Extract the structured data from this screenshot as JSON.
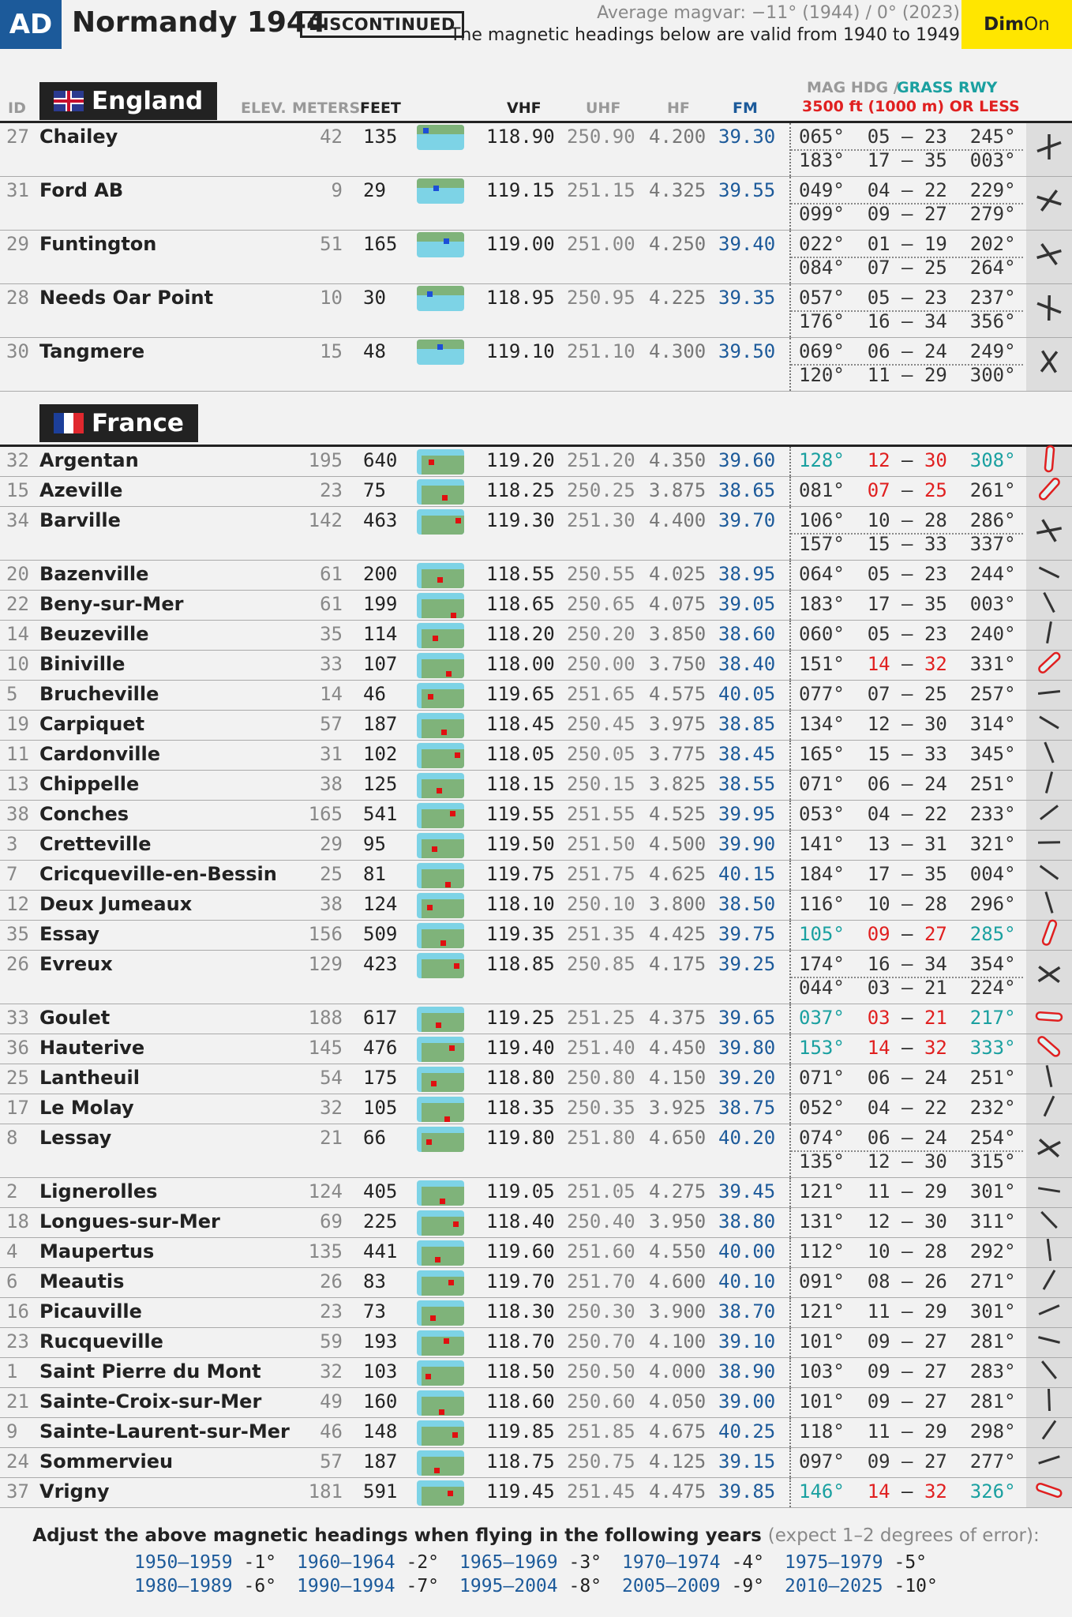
{
  "header": {
    "badge": "AD",
    "title": "Normandy 1944",
    "status": "DISCONTINUED",
    "magvar": "Average magvar: −11° (1944) / 0° (2023)",
    "validity": "The magnetic headings below are valid from 1940 to 1949",
    "dim_label": "Dim",
    "on_label": "On"
  },
  "columns": {
    "id": "ID",
    "elev": "ELEV.",
    "meters": "METERS",
    "feet": "FEET",
    "vhf": "VHF",
    "uhf": "UHF",
    "hf": "HF",
    "fm": "FM",
    "mag_hdg": "MAG HDG /",
    "grass_rwy": "GRASS RWY",
    "rwy_limit": "3500 ft (1000 m) OR LESS"
  },
  "sections": [
    {
      "name": "England",
      "flag": "uk-flag",
      "airfields": [
        {
          "id": "27",
          "name": "Chailey",
          "m": "42",
          "ft": "135",
          "vhf": "118.90",
          "uhf": "250.90",
          "hf": "4.200",
          "fm": "39.30",
          "rwys": [
            "065°  05 – 23  245°",
            "183°  17 – 35  003°"
          ],
          "grass": false,
          "icon": "runway-cross-icon"
        },
        {
          "id": "31",
          "name": "Ford AB",
          "m": "9",
          "ft": "29",
          "vhf": "119.15",
          "uhf": "251.15",
          "hf": "4.325",
          "fm": "39.55",
          "rwys": [
            "049°  04 – 22  229°",
            "099°  09 – 27  279°"
          ],
          "grass": false,
          "icon": "runway-cross-icon"
        },
        {
          "id": "29",
          "name": "Funtington",
          "m": "51",
          "ft": "165",
          "vhf": "119.00",
          "uhf": "251.00",
          "hf": "4.250",
          "fm": "39.40",
          "rwys": [
            "022°  01 – 19  202°",
            "084°  07 – 25  264°"
          ],
          "grass": false,
          "icon": "runway-cross-icon"
        },
        {
          "id": "28",
          "name": "Needs Oar Point",
          "m": "10",
          "ft": "30",
          "vhf": "118.95",
          "uhf": "250.95",
          "hf": "4.225",
          "fm": "39.35",
          "rwys": [
            "057°  05 – 23  237°",
            "176°  16 – 34  356°"
          ],
          "grass": false,
          "icon": "runway-cross-icon"
        },
        {
          "id": "30",
          "name": "Tangmere",
          "m": "15",
          "ft": "48",
          "vhf": "119.10",
          "uhf": "251.10",
          "hf": "4.300",
          "fm": "39.50",
          "rwys": [
            "069°  06 – 24  249°",
            "120°  11 – 29  300°"
          ],
          "grass": false,
          "icon": "runway-cross-icon"
        }
      ]
    },
    {
      "name": "France",
      "flag": "france-flag",
      "airfields": [
        {
          "id": "32",
          "name": "Argentan",
          "m": "195",
          "ft": "640",
          "vhf": "119.20",
          "uhf": "251.20",
          "hf": "4.350",
          "fm": "39.60",
          "rwys": [
            "128°  12 – 30  308°"
          ],
          "grass": true,
          "icon": "grass-runway-icon"
        },
        {
          "id": "15",
          "name": "Azeville",
          "m": "23",
          "ft": "75",
          "vhf": "118.25",
          "uhf": "250.25",
          "hf": "3.875",
          "fm": "38.65",
          "rwys": [
            "081°  07 – 25  261°"
          ],
          "grass": true,
          "icon": "grass-runway-icon",
          "redNumsOnly": true
        },
        {
          "id": "34",
          "name": "Barville",
          "m": "142",
          "ft": "463",
          "vhf": "119.30",
          "uhf": "251.30",
          "hf": "4.400",
          "fm": "39.70",
          "rwys": [
            "106°  10 – 28  286°",
            "157°  15 – 33  337°"
          ],
          "grass": false,
          "icon": "runway-cross-icon"
        },
        {
          "id": "20",
          "name": "Bazenville",
          "m": "61",
          "ft": "200",
          "vhf": "118.55",
          "uhf": "250.55",
          "hf": "4.025",
          "fm": "38.95",
          "rwys": [
            "064°  05 – 23  244°"
          ],
          "grass": false,
          "icon": "runway-line-icon"
        },
        {
          "id": "22",
          "name": "Beny-sur-Mer",
          "m": "61",
          "ft": "199",
          "vhf": "118.65",
          "uhf": "250.65",
          "hf": "4.075",
          "fm": "39.05",
          "rwys": [
            "183°  17 – 35  003°"
          ],
          "grass": false,
          "icon": "runway-line-icon"
        },
        {
          "id": "14",
          "name": "Beuzeville",
          "m": "35",
          "ft": "114",
          "vhf": "118.20",
          "uhf": "250.20",
          "hf": "3.850",
          "fm": "38.60",
          "rwys": [
            "060°  05 – 23  240°"
          ],
          "grass": false,
          "icon": "runway-line-icon"
        },
        {
          "id": "10",
          "name": "Biniville",
          "m": "33",
          "ft": "107",
          "vhf": "118.00",
          "uhf": "250.00",
          "hf": "3.750",
          "fm": "38.40",
          "rwys": [
            "151°  14 – 32  331°"
          ],
          "grass": true,
          "icon": "grass-runway-icon",
          "redNumsOnly": true
        },
        {
          "id": "5",
          "name": "Brucheville",
          "m": "14",
          "ft": "46",
          "vhf": "119.65",
          "uhf": "251.65",
          "hf": "4.575",
          "fm": "40.05",
          "rwys": [
            "077°  07 – 25  257°"
          ],
          "grass": false,
          "icon": "runway-line-icon"
        },
        {
          "id": "19",
          "name": "Carpiquet",
          "m": "57",
          "ft": "187",
          "vhf": "118.45",
          "uhf": "250.45",
          "hf": "3.975",
          "fm": "38.85",
          "rwys": [
            "134°  12 – 30  314°"
          ],
          "grass": false,
          "icon": "runway-line-icon"
        },
        {
          "id": "11",
          "name": "Cardonville",
          "m": "31",
          "ft": "102",
          "vhf": "118.05",
          "uhf": "250.05",
          "hf": "3.775",
          "fm": "38.45",
          "rwys": [
            "165°  15 – 33  345°"
          ],
          "grass": false,
          "icon": "runway-line-icon"
        },
        {
          "id": "13",
          "name": "Chippelle",
          "m": "38",
          "ft": "125",
          "vhf": "118.15",
          "uhf": "250.15",
          "hf": "3.825",
          "fm": "38.55",
          "rwys": [
            "071°  06 – 24  251°"
          ],
          "grass": false,
          "icon": "runway-line-icon"
        },
        {
          "id": "38",
          "name": "Conches",
          "m": "165",
          "ft": "541",
          "vhf": "119.55",
          "uhf": "251.55",
          "hf": "4.525",
          "fm": "39.95",
          "rwys": [
            "053°  04 – 22  233°"
          ],
          "grass": false,
          "icon": "runway-line-icon"
        },
        {
          "id": "3",
          "name": "Cretteville",
          "m": "29",
          "ft": "95",
          "vhf": "119.50",
          "uhf": "251.50",
          "hf": "4.500",
          "fm": "39.90",
          "rwys": [
            "141°  13 – 31  321°"
          ],
          "grass": false,
          "icon": "runway-line-icon"
        },
        {
          "id": "7",
          "name": "Cricqueville-en-Bessin",
          "m": "25",
          "ft": "81",
          "vhf": "119.75",
          "uhf": "251.75",
          "hf": "4.625",
          "fm": "40.15",
          "rwys": [
            "184°  17 – 35  004°"
          ],
          "grass": false,
          "icon": "runway-line-icon"
        },
        {
          "id": "12",
          "name": "Deux Jumeaux",
          "m": "38",
          "ft": "124",
          "vhf": "118.10",
          "uhf": "250.10",
          "hf": "3.800",
          "fm": "38.50",
          "rwys": [
            "116°  10 – 28  296°"
          ],
          "grass": false,
          "icon": "runway-line-icon"
        },
        {
          "id": "35",
          "name": "Essay",
          "m": "156",
          "ft": "509",
          "vhf": "119.35",
          "uhf": "251.35",
          "hf": "4.425",
          "fm": "39.75",
          "rwys": [
            "105°  09 – 27  285°"
          ],
          "grass": true,
          "icon": "grass-runway-icon"
        },
        {
          "id": "26",
          "name": "Evreux",
          "m": "129",
          "ft": "423",
          "vhf": "118.85",
          "uhf": "250.85",
          "hf": "4.175",
          "fm": "39.25",
          "rwys": [
            "174°  16 – 34  354°",
            "044°  03 – 21  224°"
          ],
          "grass": false,
          "icon": "runway-cross-icon"
        },
        {
          "id": "33",
          "name": "Goulet",
          "m": "188",
          "ft": "617",
          "vhf": "119.25",
          "uhf": "251.25",
          "hf": "4.375",
          "fm": "39.65",
          "rwys": [
            "037°  03 – 21  217°"
          ],
          "grass": true,
          "icon": "grass-runway-icon"
        },
        {
          "id": "36",
          "name": "Hauterive",
          "m": "145",
          "ft": "476",
          "vhf": "119.40",
          "uhf": "251.40",
          "hf": "4.450",
          "fm": "39.80",
          "rwys": [
            "153°  14 – 32  333°"
          ],
          "grass": true,
          "icon": "grass-runway-icon"
        },
        {
          "id": "25",
          "name": "Lantheuil",
          "m": "54",
          "ft": "175",
          "vhf": "118.80",
          "uhf": "250.80",
          "hf": "4.150",
          "fm": "39.20",
          "rwys": [
            "071°  06 – 24  251°"
          ],
          "grass": false,
          "icon": "runway-line-icon"
        },
        {
          "id": "17",
          "name": "Le Molay",
          "m": "32",
          "ft": "105",
          "vhf": "118.35",
          "uhf": "250.35",
          "hf": "3.925",
          "fm": "38.75",
          "rwys": [
            "052°  04 – 22  232°"
          ],
          "grass": false,
          "icon": "runway-line-icon"
        },
        {
          "id": "8",
          "name": "Lessay",
          "m": "21",
          "ft": "66",
          "vhf": "119.80",
          "uhf": "251.80",
          "hf": "4.650",
          "fm": "40.20",
          "rwys": [
            "074°  06 – 24  254°",
            "135°  12 – 30  315°"
          ],
          "grass": false,
          "icon": "runway-cross-icon"
        },
        {
          "id": "2",
          "name": "Lignerolles",
          "m": "124",
          "ft": "405",
          "vhf": "119.05",
          "uhf": "251.05",
          "hf": "4.275",
          "fm": "39.45",
          "rwys": [
            "121°  11 – 29  301°"
          ],
          "grass": false,
          "icon": "runway-line-icon"
        },
        {
          "id": "18",
          "name": "Longues-sur-Mer",
          "m": "69",
          "ft": "225",
          "vhf": "118.40",
          "uhf": "250.40",
          "hf": "3.950",
          "fm": "38.80",
          "rwys": [
            "131°  12 – 30  311°"
          ],
          "grass": false,
          "icon": "runway-line-icon"
        },
        {
          "id": "4",
          "name": "Maupertus",
          "m": "135",
          "ft": "441",
          "vhf": "119.60",
          "uhf": "251.60",
          "hf": "4.550",
          "fm": "40.00",
          "rwys": [
            "112°  10 – 28  292°"
          ],
          "grass": false,
          "icon": "runway-line-icon"
        },
        {
          "id": "6",
          "name": "Meautis",
          "m": "26",
          "ft": "83",
          "vhf": "119.70",
          "uhf": "251.70",
          "hf": "4.600",
          "fm": "40.10",
          "rwys": [
            "091°  08 – 26  271°"
          ],
          "grass": false,
          "icon": "runway-line-icon"
        },
        {
          "id": "16",
          "name": "Picauville",
          "m": "23",
          "ft": "73",
          "vhf": "118.30",
          "uhf": "250.30",
          "hf": "3.900",
          "fm": "38.70",
          "rwys": [
            "121°  11 – 29  301°"
          ],
          "grass": false,
          "icon": "runway-line-icon"
        },
        {
          "id": "23",
          "name": "Rucqueville",
          "m": "59",
          "ft": "193",
          "vhf": "118.70",
          "uhf": "250.70",
          "hf": "4.100",
          "fm": "39.10",
          "rwys": [
            "101°  09 – 27  281°"
          ],
          "grass": false,
          "icon": "runway-line-icon"
        },
        {
          "id": "1",
          "name": "Saint Pierre du Mont",
          "m": "32",
          "ft": "103",
          "vhf": "118.50",
          "uhf": "250.50",
          "hf": "4.000",
          "fm": "38.90",
          "rwys": [
            "103°  09 – 27  283°"
          ],
          "grass": false,
          "icon": "runway-line-icon"
        },
        {
          "id": "21",
          "name": "Sainte-Croix-sur-Mer",
          "m": "49",
          "ft": "160",
          "vhf": "118.60",
          "uhf": "250.60",
          "hf": "4.050",
          "fm": "39.00",
          "rwys": [
            "101°  09 – 27  281°"
          ],
          "grass": false,
          "icon": "runway-line-icon"
        },
        {
          "id": "9",
          "name": "Sainte-Laurent-sur-Mer",
          "m": "46",
          "ft": "148",
          "vhf": "119.85",
          "uhf": "251.85",
          "hf": "4.675",
          "fm": "40.25",
          "rwys": [
            "118°  11 – 29  298°"
          ],
          "grass": false,
          "icon": "runway-line-icon"
        },
        {
          "id": "24",
          "name": "Sommervieu",
          "m": "57",
          "ft": "187",
          "vhf": "118.75",
          "uhf": "250.75",
          "hf": "4.125",
          "fm": "39.15",
          "rwys": [
            "097°  09 – 27  277°"
          ],
          "grass": false,
          "icon": "runway-line-icon"
        },
        {
          "id": "37",
          "name": "Vrigny",
          "m": "181",
          "ft": "591",
          "vhf": "119.45",
          "uhf": "251.45",
          "hf": "4.475",
          "fm": "39.85",
          "rwys": [
            "146°  14 – 32  326°"
          ],
          "grass": true,
          "icon": "grass-runway-icon"
        }
      ]
    }
  ],
  "footer": {
    "title": "Adjust the above magnetic headings when flying in the following years",
    "note": "(expect 1–2 degrees of error):",
    "years": [
      {
        "y": "1950–1959",
        "d": "-1°"
      },
      {
        "y": "1960–1964",
        "d": "-2°"
      },
      {
        "y": "1965–1969",
        "d": "-3°"
      },
      {
        "y": "1970–1974",
        "d": "-4°"
      },
      {
        "y": "1975–1979",
        "d": "-5°"
      },
      {
        "y": "1980–1989",
        "d": "-6°"
      },
      {
        "y": "1990–1994",
        "d": "-7°"
      },
      {
        "y": "1995–2004",
        "d": "-8°"
      },
      {
        "y": "2005–2009",
        "d": "-9°"
      },
      {
        "y": "2010–2025",
        "d": "-10°"
      }
    ]
  },
  "colors": {
    "badge": "#1c5a9a",
    "dim_button": "#ffe600",
    "fm": "#1c5a9a",
    "grass_heading": "#1aa0a0",
    "grass_runway_number": "#e02020",
    "limit_text": "#e02020"
  }
}
